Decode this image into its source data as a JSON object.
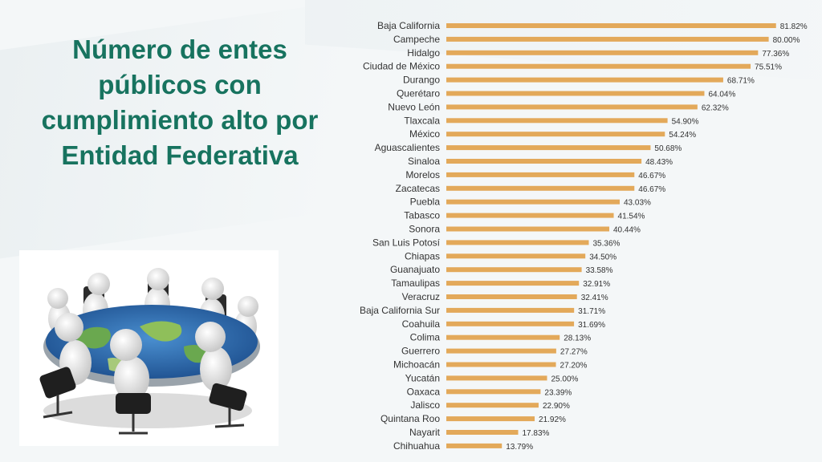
{
  "slide": {
    "title": "Número de entes\npúblicos con\ncumplimiento alto por\nEntidad Federativa",
    "illustration_icon": "people-around-globe-table-icon"
  },
  "colors": {
    "title": "#17735f",
    "bar": "#e3a95a",
    "background": "#f4f7f8"
  },
  "chart_data": {
    "type": "bar",
    "orientation": "horizontal",
    "title": "",
    "xlabel": "",
    "ylabel": "",
    "grid": false,
    "legend": "none",
    "xlim": [
      0,
      100
    ],
    "categories": [
      "Baja California",
      "Campeche",
      "Hidalgo",
      "Ciudad de México",
      "Durango",
      "Querétaro",
      "Nuevo León",
      "Tlaxcala",
      "México",
      "Aguascalientes",
      "Sinaloa",
      "Morelos",
      "Zacatecas",
      "Puebla",
      "Tabasco",
      "Sonora",
      "San Luis Potosí",
      "Chiapas",
      "Guanajuato",
      "Tamaulipas",
      "Veracruz",
      "Baja California Sur",
      "Coahuila",
      "Colima",
      "Guerrero",
      "Michoacán",
      "Yucatán",
      "Oaxaca",
      "Jalisco",
      "Quintana Roo",
      "Nayarit",
      "Chihuahua"
    ],
    "values": [
      81.82,
      80.0,
      77.36,
      75.51,
      68.71,
      64.04,
      62.32,
      54.9,
      54.24,
      50.68,
      48.43,
      46.67,
      46.67,
      43.03,
      41.54,
      40.44,
      35.36,
      34.5,
      33.58,
      32.91,
      32.41,
      31.71,
      31.69,
      28.13,
      27.27,
      27.2,
      25.0,
      23.39,
      22.9,
      21.92,
      17.83,
      13.79
    ],
    "value_labels": [
      "81.82%",
      "80.00%",
      "77.36%",
      "75.51%",
      "68.71%",
      "64.04%",
      "62.32%",
      "54.90%",
      "54.24%",
      "50.68%",
      "48.43%",
      "46.67%",
      "46.67%",
      "43.03%",
      "41.54%",
      "40.44%",
      "35.36%",
      "34.50%",
      "33.58%",
      "32.91%",
      "32.41%",
      "31.71%",
      "31.69%",
      "28.13%",
      "27.27%",
      "27.20%",
      "25.00%",
      "23.39%",
      "22.90%",
      "21.92%",
      "17.83%",
      "13.79%"
    ]
  }
}
